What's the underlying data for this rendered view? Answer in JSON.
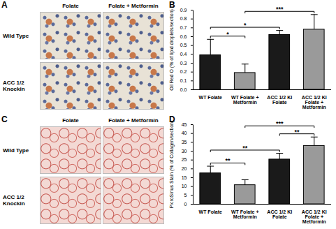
{
  "chart_data": [
    {
      "type": "bar",
      "panel": "B",
      "y_label": "Oil Red O (% of lipid droplets/section)",
      "categories": [
        "WT Folate",
        "WT Folate + Metformin",
        "ACC 1/2 KI Folate",
        "ACC 1/2 KI Folate + Metformin"
      ],
      "values": [
        0.39,
        0.19,
        0.62,
        0.68
      ],
      "errors": [
        0.18,
        0.1,
        0.05,
        0.17
      ],
      "colors": [
        "#1a1a1a",
        "#9a9a9a",
        "#1a1a1a",
        "#9a9a9a"
      ],
      "ylim": [
        0,
        0.9
      ],
      "yticks": [
        0,
        0.1,
        0.2,
        0.3,
        0.4,
        0.5,
        0.6,
        0.7,
        0.8,
        0.9
      ],
      "significance": [
        {
          "pair": [
            0,
            1
          ],
          "label": "*"
        },
        {
          "pair": [
            0,
            2
          ],
          "label": "*"
        },
        {
          "pair": [
            1,
            3
          ],
          "label": "***"
        }
      ]
    },
    {
      "type": "bar",
      "panel": "D",
      "y_label": "PicroSirius Stain (% of Collagen/section)",
      "categories": [
        "WT Folate",
        "WT Folate + Metformin",
        "ACC 1/2 KI Folate",
        "ACC 1/2 KI Folate + Metformin"
      ],
      "values": [
        17.5,
        10.8,
        25.3,
        33
      ],
      "errors": [
        4,
        3,
        3.5,
        5
      ],
      "colors": [
        "#1a1a1a",
        "#9a9a9a",
        "#1a1a1a",
        "#9a9a9a"
      ],
      "ylim": [
        0,
        45
      ],
      "yticks": [
        0,
        5,
        10,
        15,
        20,
        25,
        30,
        35,
        40,
        45
      ],
      "significance": [
        {
          "pair": [
            0,
            1
          ],
          "label": "**"
        },
        {
          "pair": [
            0,
            2
          ],
          "label": "**"
        },
        {
          "pair": [
            2,
            3
          ],
          "label": "**"
        },
        {
          "pair": [
            1,
            3
          ],
          "label": "***"
        }
      ]
    }
  ],
  "image_panels": [
    {
      "panel": "A",
      "stain": "oil",
      "columns": [
        "Folate",
        "Folate + Metformin"
      ],
      "rows": [
        "Wild Type",
        "ACC 1/2 Knockin"
      ]
    },
    {
      "panel": "C",
      "stain": "picro",
      "columns": [
        "Folate",
        "Folate + Metformin"
      ],
      "rows": [
        "Wild Type",
        "ACC 1/2 Knockin"
      ]
    }
  ]
}
